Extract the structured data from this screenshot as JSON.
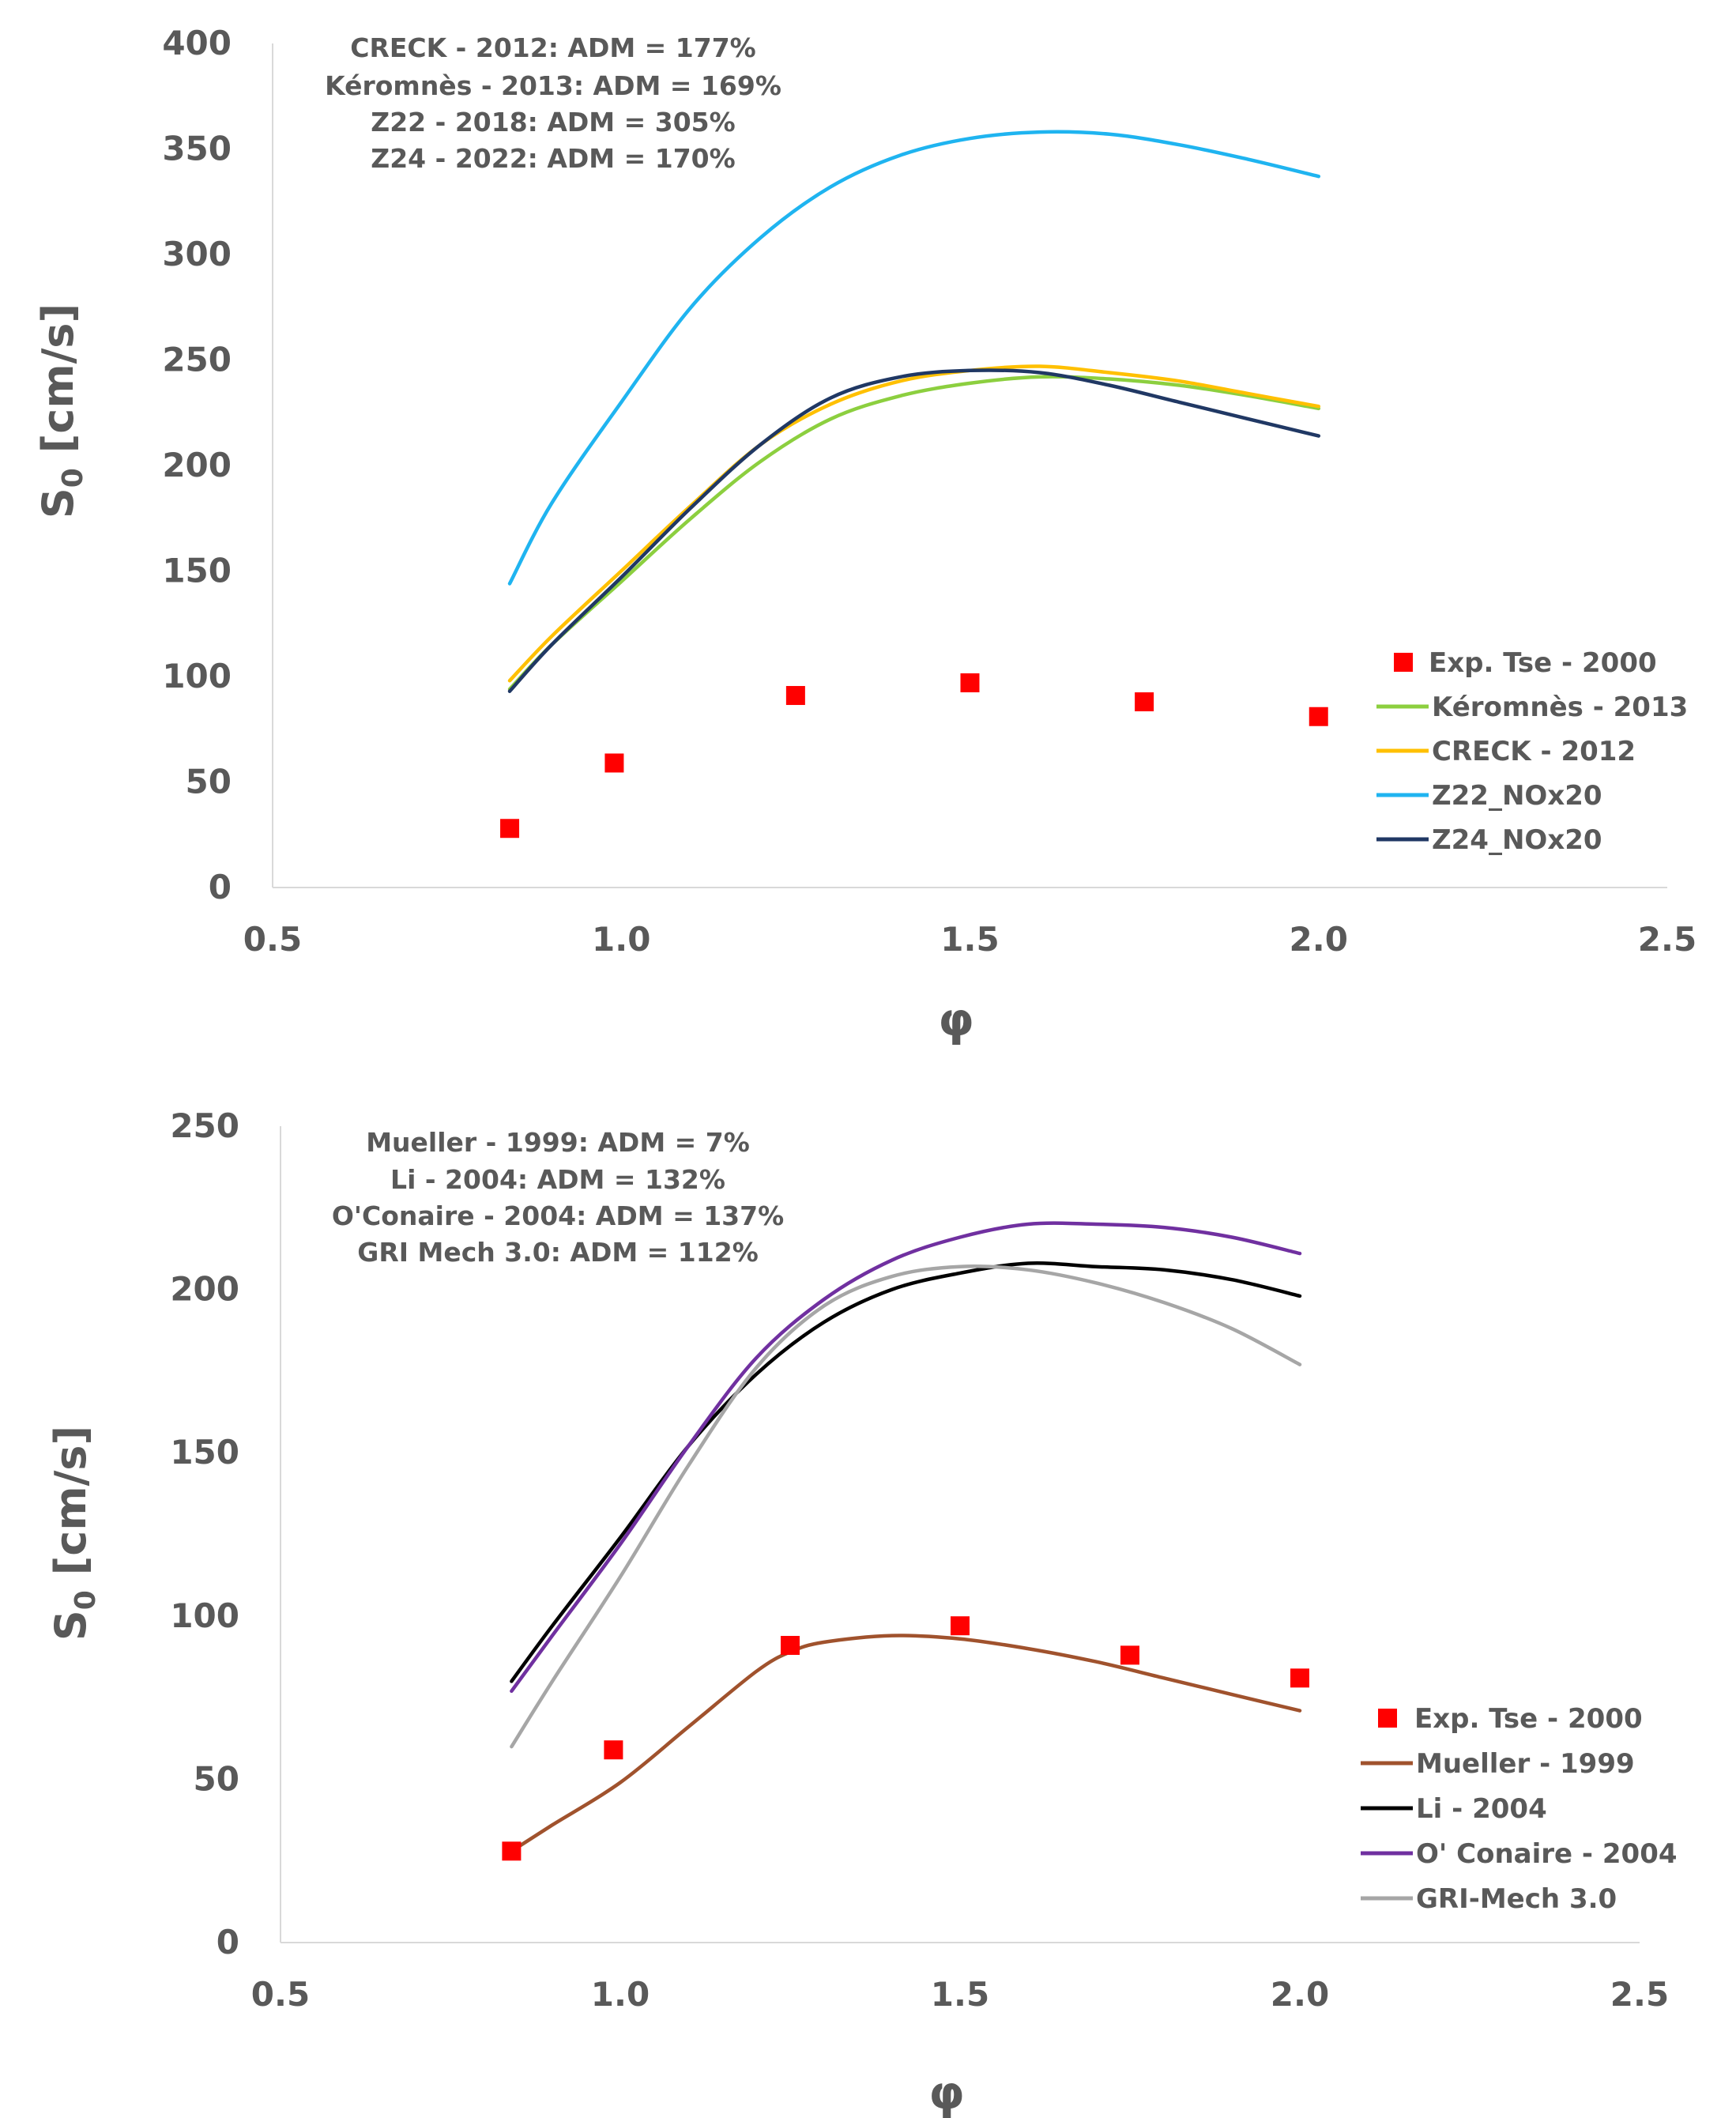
{
  "chart_data": [
    {
      "type": "line",
      "xlabel": "φ",
      "ylabel": "S0 [cm/s]",
      "ylabel_main": "S",
      "ylabel_sub": "0",
      "ylabel_unit": " [cm/s]",
      "xlim": [
        0.5,
        2.5
      ],
      "ylim": [
        0,
        400
      ],
      "x_ticks": [
        0.5,
        1.0,
        1.5,
        2.0,
        2.5
      ],
      "x_tick_labels": [
        "0.5",
        "1.0",
        "1.5",
        "2.0",
        "2.5"
      ],
      "y_ticks": [
        0,
        50,
        100,
        150,
        200,
        250,
        300,
        350,
        400
      ],
      "y_tick_labels": [
        "0",
        "50",
        "100",
        "150",
        "200",
        "250",
        "300",
        "350",
        "400"
      ],
      "grid": false,
      "legend_position": "bottom-right",
      "annotations": [
        "CRECK - 2012: ADM = 177%",
        "Kéromnès - 2013: ADM = 169%",
        "Z22 - 2018: ADM = 305%",
        "Z24 - 2022: ADM = 170%"
      ],
      "scatter": {
        "name": "Exp. Tse - 2000",
        "color": "#ff0000",
        "x": [
          0.84,
          0.99,
          1.25,
          1.5,
          1.75,
          2.0
        ],
        "y": [
          28,
          59,
          91,
          97,
          88,
          81
        ]
      },
      "series": [
        {
          "name": "Kéromnès - 2013",
          "color": "#8ccf3f",
          "x": [
            0.84,
            0.9,
            1.0,
            1.1,
            1.2,
            1.3,
            1.4,
            1.5,
            1.6,
            1.7,
            1.8,
            1.9,
            2.0
          ],
          "y": [
            94,
            115,
            145,
            175,
            202,
            222,
            233,
            239,
            242,
            241,
            238,
            233,
            227
          ]
        },
        {
          "name": "CRECK - 2012",
          "color": "#ffc000",
          "x": [
            0.84,
            0.9,
            1.0,
            1.1,
            1.2,
            1.3,
            1.4,
            1.5,
            1.6,
            1.7,
            1.8,
            1.9,
            2.0
          ],
          "y": [
            98,
            119,
            150,
            181,
            210,
            229,
            240,
            245,
            247,
            244,
            240,
            234,
            228
          ]
        },
        {
          "name": "Z22_NOx20",
          "color": "#1fb4f0",
          "x": [
            0.84,
            0.9,
            1.0,
            1.1,
            1.2,
            1.3,
            1.4,
            1.5,
            1.6,
            1.7,
            1.8,
            1.9,
            2.0
          ],
          "y": [
            144,
            182,
            230,
            275,
            308,
            332,
            347,
            355,
            358,
            357,
            352,
            345,
            337
          ]
        },
        {
          "name": "Z24_NOx20",
          "color": "#203864",
          "x": [
            0.84,
            0.9,
            1.0,
            1.1,
            1.2,
            1.3,
            1.4,
            1.5,
            1.6,
            1.7,
            1.8,
            1.9,
            2.0
          ],
          "y": [
            93,
            115,
            147,
            180,
            210,
            232,
            242,
            245,
            244,
            238,
            230,
            222,
            214
          ]
        }
      ]
    },
    {
      "type": "line",
      "xlabel": "φ",
      "ylabel": "S0 [cm/s]",
      "ylabel_main": "S",
      "ylabel_sub": "0",
      "ylabel_unit": " [cm/s]",
      "xlim": [
        0.5,
        2.5
      ],
      "ylim": [
        0,
        250
      ],
      "x_ticks": [
        0.5,
        1.0,
        1.5,
        2.0,
        2.5
      ],
      "x_tick_labels": [
        "0.5",
        "1.0",
        "1.5",
        "2.0",
        "2.5"
      ],
      "y_ticks": [
        0,
        50,
        100,
        150,
        200,
        250
      ],
      "y_tick_labels": [
        "0",
        "50",
        "100",
        "150",
        "200",
        "250"
      ],
      "grid": false,
      "legend_position": "bottom-right",
      "annotations": [
        "Mueller - 1999: ADM = 7%",
        "Li - 2004: ADM = 132%",
        "O'Conaire - 2004: ADM = 137%",
        "GRI Mech 3.0: ADM = 112%"
      ],
      "scatter": {
        "name": "Exp. Tse - 2000",
        "color": "#ff0000",
        "x": [
          0.84,
          0.99,
          1.25,
          1.5,
          1.75,
          2.0
        ],
        "y": [
          28,
          59,
          91,
          97,
          88,
          81
        ]
      },
      "series": [
        {
          "name": "Mueller - 1999",
          "color": "#a0522d",
          "x": [
            0.84,
            0.9,
            1.0,
            1.1,
            1.2,
            1.25,
            1.3,
            1.4,
            1.5,
            1.6,
            1.7,
            1.8,
            1.9,
            2.0
          ],
          "y": [
            28,
            36,
            49,
            66,
            83,
            89,
            92,
            94,
            93,
            90,
            86,
            81,
            76,
            71
          ]
        },
        {
          "name": "Li - 2004",
          "color": "#000000",
          "x": [
            0.84,
            0.9,
            1.0,
            1.1,
            1.2,
            1.3,
            1.4,
            1.5,
            1.6,
            1.7,
            1.8,
            1.9,
            2.0
          ],
          "y": [
            80,
            97,
            124,
            152,
            174,
            190,
            200,
            205,
            208,
            207,
            206,
            203,
            198
          ]
        },
        {
          "name": "O' Conaire - 2004",
          "color": "#7030a0",
          "x": [
            0.84,
            0.9,
            1.0,
            1.1,
            1.2,
            1.3,
            1.4,
            1.5,
            1.6,
            1.7,
            1.8,
            1.9,
            2.0
          ],
          "y": [
            77,
            94,
            122,
            152,
            179,
            197,
            209,
            216,
            220,
            220,
            219,
            216,
            211
          ]
        },
        {
          "name": "GRI-Mech 3.0",
          "color": "#a6a6a6",
          "x": [
            0.84,
            0.9,
            1.0,
            1.1,
            1.2,
            1.3,
            1.4,
            1.5,
            1.6,
            1.7,
            1.8,
            1.9,
            2.0
          ],
          "y": [
            60,
            80,
            112,
            146,
            176,
            195,
            204,
            207,
            206,
            202,
            196,
            188,
            177
          ]
        }
      ]
    }
  ]
}
